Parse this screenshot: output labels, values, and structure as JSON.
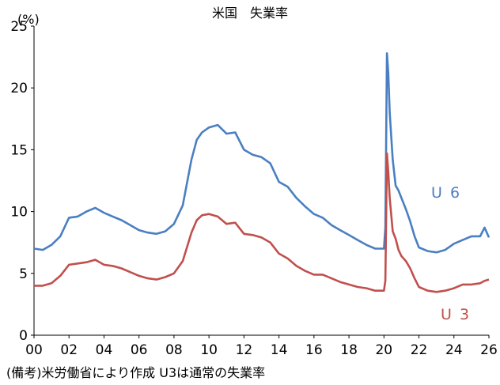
{
  "chart_data": {
    "type": "line",
    "title": "米国　失業率",
    "y_unit": "(%)",
    "ylim": [
      0,
      25
    ],
    "y_ticks": [
      "0",
      "5",
      "10",
      "15",
      "20",
      "25"
    ],
    "x_ticks": [
      "00",
      "02",
      "04",
      "06",
      "08",
      "10",
      "12",
      "14",
      "16",
      "18",
      "20",
      "22",
      "24",
      "26"
    ],
    "xlim": [
      2000,
      2026
    ],
    "grid": false,
    "legend": "inline labels at right of lines",
    "series": [
      {
        "name": "U 6",
        "color": "#4a7fc1",
        "x": [
          2000,
          2000.5,
          2001,
          2001.5,
          2002,
          2002.5,
          2003,
          2003.5,
          2004,
          2004.5,
          2005,
          2005.5,
          2006,
          2006.5,
          2007,
          2007.5,
          2008,
          2008.5,
          2009,
          2009.3,
          2009.6,
          2010,
          2010.5,
          2011,
          2011.5,
          2012,
          2012.5,
          2013,
          2013.5,
          2014,
          2014.5,
          2015,
          2015.5,
          2016,
          2016.5,
          2017,
          2017.5,
          2018,
          2018.5,
          2019,
          2019.5,
          2020,
          2020.08,
          2020.17,
          2020.25,
          2020.33,
          2020.5,
          2020.67,
          2020.83,
          2021,
          2021.25,
          2021.5,
          2021.75,
          2022,
          2022.5,
          2023,
          2023.5,
          2024,
          2024.5,
          2025,
          2025.5,
          2025.75,
          2026
        ],
        "values": [
          7.0,
          6.9,
          7.3,
          8.0,
          9.5,
          9.6,
          10.0,
          10.3,
          9.9,
          9.6,
          9.3,
          8.9,
          8.5,
          8.3,
          8.2,
          8.4,
          9.0,
          10.5,
          14.2,
          15.8,
          16.4,
          16.8,
          17.0,
          16.3,
          16.4,
          15.0,
          14.6,
          14.4,
          13.9,
          12.4,
          12.0,
          11.1,
          10.4,
          9.8,
          9.5,
          8.9,
          8.5,
          8.1,
          7.7,
          7.3,
          7.0,
          7.0,
          8.7,
          22.8,
          21.2,
          18.0,
          14.2,
          12.1,
          11.7,
          11.1,
          10.2,
          9.2,
          8.0,
          7.1,
          6.8,
          6.7,
          6.9,
          7.4,
          7.7,
          8.0,
          8.0,
          8.7,
          7.9
        ]
      },
      {
        "name": "U 3",
        "color": "#c0504d",
        "x": [
          2000,
          2000.5,
          2001,
          2001.5,
          2002,
          2002.5,
          2003,
          2003.5,
          2004,
          2004.5,
          2005,
          2005.5,
          2006,
          2006.5,
          2007,
          2007.5,
          2008,
          2008.5,
          2009,
          2009.3,
          2009.6,
          2010,
          2010.5,
          2011,
          2011.5,
          2012,
          2012.5,
          2013,
          2013.5,
          2014,
          2014.5,
          2015,
          2015.5,
          2016,
          2016.5,
          2017,
          2017.5,
          2018,
          2018.5,
          2019,
          2019.5,
          2020,
          2020.08,
          2020.17,
          2020.25,
          2020.33,
          2020.5,
          2020.67,
          2020.83,
          2021,
          2021.25,
          2021.5,
          2021.75,
          2022,
          2022.5,
          2023,
          2023.5,
          2024,
          2024.5,
          2025,
          2025.5,
          2025.75,
          2026
        ],
        "values": [
          4.0,
          4.0,
          4.2,
          4.8,
          5.7,
          5.8,
          5.9,
          6.1,
          5.7,
          5.6,
          5.4,
          5.1,
          4.8,
          4.6,
          4.5,
          4.7,
          5.0,
          6.0,
          8.3,
          9.3,
          9.7,
          9.8,
          9.6,
          9.0,
          9.1,
          8.2,
          8.1,
          7.9,
          7.5,
          6.6,
          6.2,
          5.6,
          5.2,
          4.9,
          4.9,
          4.6,
          4.3,
          4.1,
          3.9,
          3.8,
          3.6,
          3.6,
          4.4,
          14.7,
          13.2,
          11.1,
          8.4,
          7.8,
          6.9,
          6.4,
          6.0,
          5.4,
          4.6,
          3.9,
          3.6,
          3.5,
          3.6,
          3.8,
          4.1,
          4.1,
          4.2,
          4.4,
          4.5
        ]
      }
    ],
    "note": "(備考)米労働省により作成  U3は通常の失業率"
  }
}
